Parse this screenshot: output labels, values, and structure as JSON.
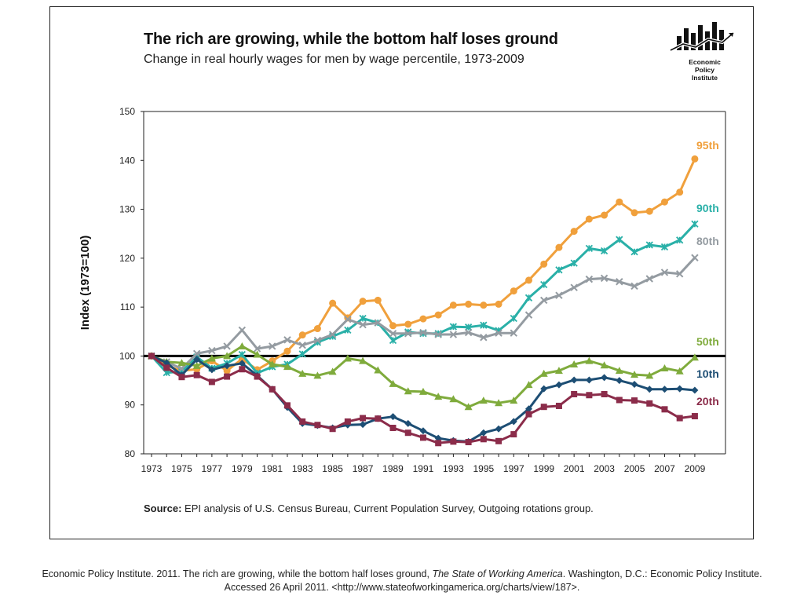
{
  "header": {
    "title": "The rich are growing, while the bottom half loses ground",
    "subtitle": "Change in real hourly wages for men by wage percentile, 1973-2009",
    "logo_text": [
      "Economic",
      "Policy",
      "Institute"
    ]
  },
  "source": {
    "label": "Source:",
    "text": "EPI analysis of U.S. Census Bureau, Current Population Survey, Outgoing rotations group."
  },
  "citation": {
    "line1_pre": "Economic Policy Institute. 2011. The rich are growing, while the bottom half loses ground, ",
    "line1_italic": "The State of Working America",
    "line1_post": ".  Washington, D.C.: Economic Policy Institute.",
    "line2": "Accessed 26 April 2011.  <http://www.stateofworkingamerica.org/charts/view/187>."
  },
  "chart_data": {
    "type": "line",
    "title": "The rich are growing, while the bottom half loses ground",
    "subtitle": "Change in real hourly wages for men by wage percentile, 1973-2009",
    "xlabel": "",
    "ylabel": "Index (1973=100)",
    "xlim": [
      1973,
      2010
    ],
    "ylim": [
      80,
      150
    ],
    "yticks": [
      80,
      90,
      100,
      110,
      120,
      130,
      140,
      150
    ],
    "xticks": [
      1973,
      1975,
      1977,
      1979,
      1981,
      1983,
      1985,
      1987,
      1989,
      1991,
      1993,
      1995,
      1997,
      1999,
      2001,
      2003,
      2005,
      2007,
      2009
    ],
    "reference_line": 100,
    "grid": false,
    "legend": "direct-labels-right",
    "x": [
      1973,
      1974,
      1975,
      1976,
      1977,
      1978,
      1979,
      1980,
      1981,
      1982,
      1983,
      1984,
      1985,
      1986,
      1987,
      1988,
      1989,
      1990,
      1991,
      1992,
      1993,
      1994,
      1995,
      1996,
      1997,
      1998,
      1999,
      2000,
      2001,
      2002,
      2003,
      2004,
      2005,
      2006,
      2007,
      2008,
      2009
    ],
    "series": [
      {
        "name": "95th",
        "color": "#f0a03c",
        "marker": "circle",
        "values": [
          100,
          98.0,
          97.0,
          97.3,
          99.0,
          97.0,
          99.4,
          97.2,
          99.0,
          101.0,
          104.3,
          105.6,
          110.8,
          107.8,
          111.2,
          111.4,
          106.2,
          106.5,
          107.6,
          108.4,
          110.4,
          110.6,
          110.4,
          110.6,
          113.3,
          115.5,
          118.8,
          122.2,
          125.5,
          128.0,
          128.8,
          131.5,
          129.3,
          129.6,
          131.5,
          133.5,
          140.3
        ]
      },
      {
        "name": "90th",
        "color": "#2ab0a8",
        "marker": "x-star",
        "values": [
          100,
          96.6,
          96.8,
          99.8,
          97.5,
          98.5,
          100.3,
          96.5,
          97.8,
          98.3,
          100.4,
          102.8,
          104.0,
          105.3,
          107.7,
          106.8,
          103.2,
          104.9,
          104.6,
          104.6,
          106.0,
          105.9,
          106.3,
          105.2,
          107.7,
          111.9,
          114.6,
          117.6,
          119.0,
          122.0,
          121.5,
          123.8,
          121.3,
          122.7,
          122.3,
          123.7,
          127.0
        ]
      },
      {
        "name": "80th",
        "color": "#949ba1",
        "marker": "x",
        "values": [
          100,
          98.8,
          97.4,
          100.5,
          101.1,
          102.0,
          105.3,
          101.5,
          102.0,
          103.3,
          102.2,
          103.2,
          104.4,
          107.5,
          106.4,
          106.8,
          104.6,
          104.6,
          104.8,
          104.4,
          104.4,
          104.8,
          103.8,
          104.7,
          104.7,
          108.4,
          111.4,
          112.4,
          114.0,
          115.7,
          115.9,
          115.2,
          114.3,
          115.8,
          117.1,
          116.8,
          120.1
        ]
      },
      {
        "name": "50th",
        "color": "#7fab3c",
        "marker": "triangle",
        "values": [
          100,
          98.8,
          98.6,
          98.0,
          99.5,
          100.0,
          102.0,
          100.3,
          98.3,
          97.8,
          96.4,
          96.0,
          96.8,
          99.5,
          99.0,
          97.1,
          94.3,
          92.8,
          92.7,
          91.7,
          91.2,
          89.6,
          90.9,
          90.4,
          90.9,
          94.1,
          96.4,
          97.0,
          98.3,
          99.0,
          98.1,
          97.0,
          96.2,
          96.0,
          97.5,
          96.9,
          99.7
        ]
      },
      {
        "name": "10th",
        "color": "#1d4e74",
        "marker": "diamond",
        "values": [
          100,
          98.6,
          96.1,
          99.3,
          97.2,
          98.0,
          98.5,
          96.0,
          93.2,
          89.5,
          86.2,
          85.8,
          85.3,
          85.9,
          86.0,
          87.2,
          87.6,
          86.2,
          84.7,
          83.2,
          82.7,
          82.5,
          84.3,
          85.1,
          86.6,
          89.2,
          93.3,
          94.1,
          95.1,
          95.1,
          95.6,
          95.0,
          94.2,
          93.2,
          93.2,
          93.3,
          93.0
        ]
      },
      {
        "name": "20th",
        "color": "#8b2c4a",
        "marker": "square",
        "values": [
          100,
          97.6,
          95.7,
          96.1,
          94.7,
          95.8,
          97.3,
          95.8,
          93.2,
          89.9,
          86.6,
          85.9,
          85.1,
          86.6,
          87.3,
          87.2,
          85.3,
          84.3,
          83.3,
          82.2,
          82.5,
          82.4,
          83.0,
          82.6,
          84.0,
          88.1,
          89.6,
          89.8,
          92.2,
          92.0,
          92.2,
          91.0,
          90.9,
          90.3,
          89.1,
          87.3,
          87.7
        ]
      }
    ]
  }
}
